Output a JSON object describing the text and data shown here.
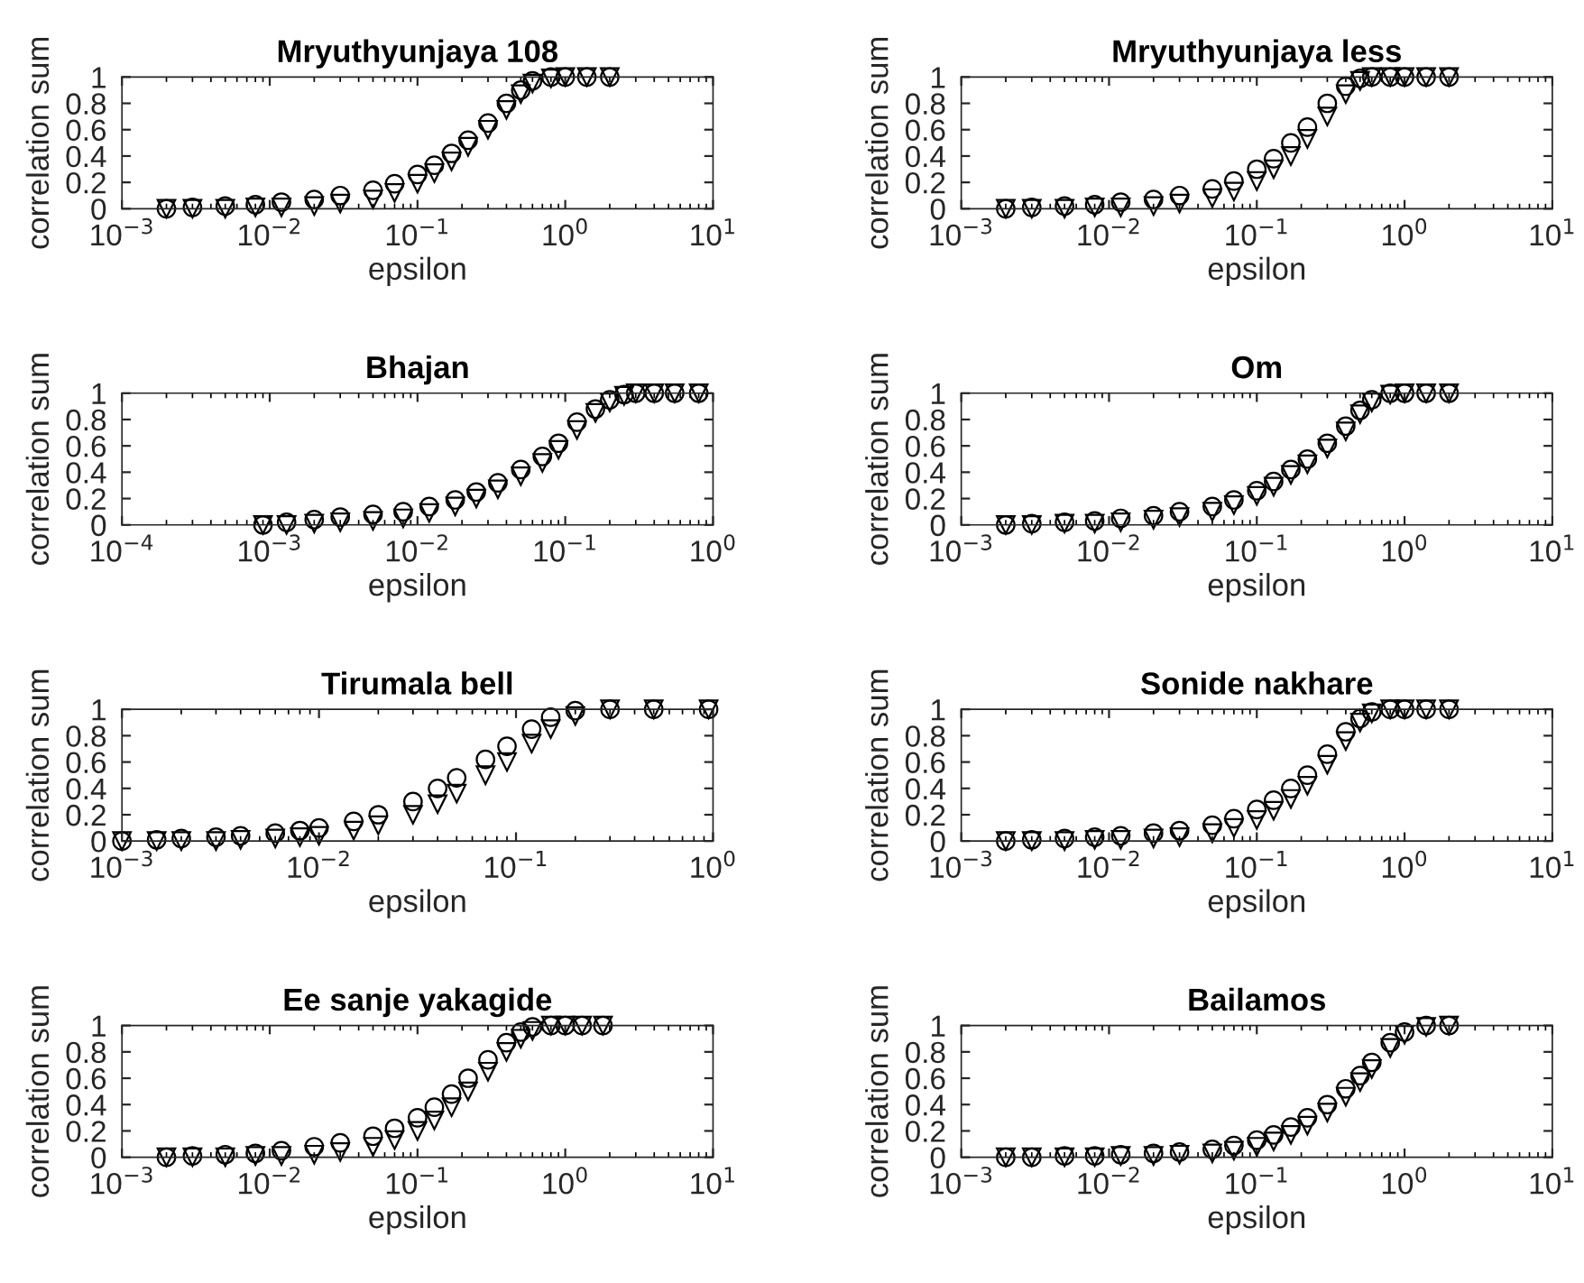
{
  "chart_data": [
    {
      "type": "scatter",
      "title": "Mryuthyunjaya 108",
      "xlabel": "epsilon",
      "ylabel": "correlation sum",
      "log": "x",
      "xlim": [
        0.001,
        10
      ],
      "xticks": [
        {
          "value": 0.001,
          "label": "10$^{−3}$"
        },
        {
          "value": 0.01,
          "label": "10$^{−2}$"
        },
        {
          "value": 0.1,
          "label": "10$^{−1}$"
        },
        {
          "value": 1,
          "label": "10$^{0}$"
        },
        {
          "value": 10,
          "label": "10$^{1}$"
        }
      ],
      "ylim": [
        0,
        1
      ],
      "yticks": [
        0,
        0.2,
        0.4,
        0.6,
        0.8,
        1
      ],
      "series": [
        {
          "color": "#000000",
          "marker": "circle",
          "x": [
            0.002,
            0.003,
            0.005,
            0.008,
            0.012,
            0.02,
            0.03,
            0.05,
            0.07,
            0.1,
            0.13,
            0.17,
            0.22,
            0.3,
            0.4,
            0.5,
            0.6,
            0.8,
            1,
            1.4,
            2
          ],
          "values": [
            0,
            0.01,
            0.02,
            0.03,
            0.05,
            0.07,
            0.1,
            0.14,
            0.19,
            0.26,
            0.33,
            0.42,
            0.52,
            0.65,
            0.8,
            0.9,
            0.97,
            1,
            1,
            1,
            1
          ]
        },
        {
          "color": "#000000",
          "marker": "triangle",
          "x": [
            0.002,
            0.003,
            0.005,
            0.008,
            0.012,
            0.02,
            0.03,
            0.05,
            0.07,
            0.1,
            0.13,
            0.17,
            0.22,
            0.3,
            0.4,
            0.5,
            0.6,
            0.8,
            1,
            1.4,
            2
          ],
          "values": [
            0,
            0,
            0,
            0.01,
            0.01,
            0.02,
            0.04,
            0.07,
            0.12,
            0.19,
            0.27,
            0.36,
            0.47,
            0.6,
            0.75,
            0.87,
            0.95,
            0.99,
            1,
            1,
            1
          ]
        }
      ]
    },
    {
      "type": "scatter",
      "title": "Mryuthyunjaya less",
      "xlabel": "epsilon",
      "ylabel": "correlation sum",
      "log": "x",
      "xlim": [
        0.001,
        10
      ],
      "xticks": [
        {
          "value": 0.001,
          "label": "10$^{−3}$"
        },
        {
          "value": 0.01,
          "label": "10$^{−2}$"
        },
        {
          "value": 0.1,
          "label": "10$^{−1}$"
        },
        {
          "value": 1,
          "label": "10$^{0}$"
        },
        {
          "value": 10,
          "label": "10$^{1}$"
        }
      ],
      "ylim": [
        0,
        1
      ],
      "yticks": [
        0,
        0.2,
        0.4,
        0.6,
        0.8,
        1
      ],
      "series": [
        {
          "color": "#000000",
          "marker": "circle",
          "x": [
            0.002,
            0.003,
            0.005,
            0.008,
            0.012,
            0.02,
            0.03,
            0.05,
            0.07,
            0.1,
            0.13,
            0.17,
            0.22,
            0.3,
            0.4,
            0.5,
            0.6,
            0.8,
            1,
            1.4,
            2
          ],
          "values": [
            0,
            0.01,
            0.02,
            0.03,
            0.05,
            0.07,
            0.1,
            0.15,
            0.21,
            0.3,
            0.38,
            0.5,
            0.62,
            0.8,
            0.93,
            0.99,
            1,
            1,
            1,
            1,
            1
          ]
        },
        {
          "color": "#000000",
          "marker": "triangle",
          "x": [
            0.002,
            0.003,
            0.005,
            0.008,
            0.012,
            0.02,
            0.03,
            0.05,
            0.07,
            0.1,
            0.13,
            0.17,
            0.22,
            0.3,
            0.4,
            0.5,
            0.6,
            0.8,
            1,
            1.4,
            2
          ],
          "values": [
            0,
            0,
            0,
            0.01,
            0.01,
            0.02,
            0.04,
            0.08,
            0.13,
            0.21,
            0.3,
            0.4,
            0.53,
            0.7,
            0.87,
            0.97,
            1,
            1,
            1,
            1,
            1
          ]
        }
      ]
    },
    {
      "type": "scatter",
      "title": "Bhajan",
      "xlabel": "epsilon",
      "ylabel": "correlation sum",
      "log": "x",
      "xlim": [
        0.0001,
        1
      ],
      "xticks": [
        {
          "value": 0.0001,
          "label": "10$^{−4}$"
        },
        {
          "value": 0.001,
          "label": "10$^{−3}$"
        },
        {
          "value": 0.01,
          "label": "10$^{−2}$"
        },
        {
          "value": 0.1,
          "label": "10$^{−1}$"
        },
        {
          "value": 1,
          "label": "10$^{0}$"
        }
      ],
      "ylim": [
        0,
        1
      ],
      "yticks": [
        0,
        0.2,
        0.4,
        0.6,
        0.8,
        1
      ],
      "series": [
        {
          "color": "#000000",
          "marker": "circle",
          "x": [
            0.0009,
            0.0013,
            0.002,
            0.003,
            0.005,
            0.008,
            0.012,
            0.018,
            0.025,
            0.035,
            0.05,
            0.07,
            0.09,
            0.12,
            0.16,
            0.2,
            0.25,
            0.3,
            0.4,
            0.55,
            0.8
          ],
          "values": [
            0,
            0.02,
            0.04,
            0.06,
            0.08,
            0.1,
            0.14,
            0.19,
            0.25,
            0.32,
            0.42,
            0.52,
            0.62,
            0.78,
            0.88,
            0.95,
            0.99,
            1,
            1,
            1,
            1
          ]
        },
        {
          "color": "#000000",
          "marker": "triangle",
          "x": [
            0.0009,
            0.0013,
            0.002,
            0.003,
            0.005,
            0.008,
            0.012,
            0.018,
            0.025,
            0.035,
            0.05,
            0.07,
            0.09,
            0.12,
            0.16,
            0.2,
            0.25,
            0.3,
            0.4,
            0.55,
            0.8
          ],
          "values": [
            0,
            0,
            0.01,
            0.02,
            0.03,
            0.05,
            0.09,
            0.14,
            0.2,
            0.27,
            0.37,
            0.47,
            0.57,
            0.72,
            0.85,
            0.93,
            0.98,
            1,
            1,
            1,
            1
          ]
        }
      ]
    },
    {
      "type": "scatter",
      "title": "Om",
      "xlabel": "epsilon",
      "ylabel": "correlation sum",
      "log": "x",
      "xlim": [
        0.001,
        10
      ],
      "xticks": [
        {
          "value": 0.001,
          "label": "10$^{−3}$"
        },
        {
          "value": 0.01,
          "label": "10$^{−2}$"
        },
        {
          "value": 0.1,
          "label": "10$^{−1}$"
        },
        {
          "value": 1,
          "label": "10$^{0}$"
        },
        {
          "value": 10,
          "label": "10$^{1}$"
        }
      ],
      "ylim": [
        0,
        1
      ],
      "yticks": [
        0,
        0.2,
        0.4,
        0.6,
        0.8,
        1
      ],
      "series": [
        {
          "color": "#000000",
          "marker": "circle",
          "x": [
            0.002,
            0.003,
            0.005,
            0.008,
            0.012,
            0.02,
            0.03,
            0.05,
            0.07,
            0.1,
            0.13,
            0.17,
            0.22,
            0.3,
            0.4,
            0.5,
            0.6,
            0.8,
            1,
            1.4,
            2
          ],
          "values": [
            0,
            0.01,
            0.02,
            0.03,
            0.05,
            0.07,
            0.1,
            0.14,
            0.19,
            0.26,
            0.33,
            0.42,
            0.5,
            0.62,
            0.75,
            0.87,
            0.95,
            1,
            1,
            1,
            1
          ]
        },
        {
          "color": "#000000",
          "marker": "triangle",
          "x": [
            0.002,
            0.003,
            0.005,
            0.008,
            0.012,
            0.02,
            0.03,
            0.05,
            0.07,
            0.1,
            0.13,
            0.17,
            0.22,
            0.3,
            0.4,
            0.5,
            0.6,
            0.8,
            1,
            1.4,
            2
          ],
          "values": [
            0,
            0,
            0.01,
            0.01,
            0.02,
            0.04,
            0.06,
            0.1,
            0.15,
            0.22,
            0.29,
            0.38,
            0.46,
            0.58,
            0.71,
            0.84,
            0.93,
            0.99,
            1,
            1,
            1
          ]
        }
      ]
    },
    {
      "type": "scatter",
      "title": "Tirumala bell",
      "xlabel": "epsilon",
      "ylabel": "correlation sum",
      "log": "x",
      "xlim": [
        0.001,
        1
      ],
      "xticks": [
        {
          "value": 0.001,
          "label": "10$^{−3}$"
        },
        {
          "value": 0.01,
          "label": "10$^{−2}$"
        },
        {
          "value": 0.1,
          "label": "10$^{−1}$"
        },
        {
          "value": 1,
          "label": "10$^{0}$"
        }
      ],
      "ylim": [
        0,
        1
      ],
      "yticks": [
        0,
        0.2,
        0.4,
        0.6,
        0.8,
        1
      ],
      "series": [
        {
          "color": "#000000",
          "marker": "circle",
          "x": [
            0.001,
            0.0015,
            0.002,
            0.003,
            0.004,
            0.006,
            0.008,
            0.01,
            0.015,
            0.02,
            0.03,
            0.04,
            0.05,
            0.07,
            0.09,
            0.12,
            0.15,
            0.2,
            0.3,
            0.5,
            0.95
          ],
          "values": [
            0,
            0.01,
            0.02,
            0.03,
            0.04,
            0.06,
            0.08,
            0.1,
            0.15,
            0.2,
            0.3,
            0.4,
            0.48,
            0.62,
            0.72,
            0.85,
            0.94,
            0.99,
            1,
            1,
            1
          ]
        },
        {
          "color": "#000000",
          "marker": "triangle",
          "x": [
            0.001,
            0.0015,
            0.002,
            0.003,
            0.004,
            0.006,
            0.008,
            0.01,
            0.015,
            0.02,
            0.03,
            0.04,
            0.05,
            0.07,
            0.09,
            0.12,
            0.15,
            0.2,
            0.3,
            0.5,
            0.95
          ],
          "values": [
            0,
            0,
            0,
            0,
            0.01,
            0.02,
            0.03,
            0.04,
            0.08,
            0.12,
            0.2,
            0.28,
            0.36,
            0.5,
            0.6,
            0.74,
            0.85,
            0.95,
            1,
            1,
            1
          ]
        }
      ]
    },
    {
      "type": "scatter",
      "title": "Sonide nakhare",
      "xlabel": "epsilon",
      "ylabel": "correlation sum",
      "log": "x",
      "xlim": [
        0.001,
        10
      ],
      "xticks": [
        {
          "value": 0.001,
          "label": "10$^{−3}$"
        },
        {
          "value": 0.01,
          "label": "10$^{−2}$"
        },
        {
          "value": 0.1,
          "label": "10$^{−1}$"
        },
        {
          "value": 1,
          "label": "10$^{0}$"
        },
        {
          "value": 10,
          "label": "10$^{1}$"
        }
      ],
      "ylim": [
        0,
        1
      ],
      "yticks": [
        0,
        0.2,
        0.4,
        0.6,
        0.8,
        1
      ],
      "series": [
        {
          "color": "#000000",
          "marker": "circle",
          "x": [
            0.002,
            0.003,
            0.005,
            0.008,
            0.012,
            0.02,
            0.03,
            0.05,
            0.07,
            0.1,
            0.13,
            0.17,
            0.22,
            0.3,
            0.4,
            0.5,
            0.6,
            0.8,
            1,
            1.4,
            2
          ],
          "values": [
            0,
            0.01,
            0.02,
            0.03,
            0.04,
            0.06,
            0.08,
            0.12,
            0.17,
            0.24,
            0.31,
            0.4,
            0.5,
            0.66,
            0.83,
            0.93,
            0.98,
            1,
            1,
            1,
            1
          ]
        },
        {
          "color": "#000000",
          "marker": "triangle",
          "x": [
            0.002,
            0.003,
            0.005,
            0.008,
            0.012,
            0.02,
            0.03,
            0.05,
            0.07,
            0.1,
            0.13,
            0.17,
            0.22,
            0.3,
            0.4,
            0.5,
            0.6,
            0.8,
            1,
            1.4,
            2
          ],
          "values": [
            0,
            0,
            0,
            0.01,
            0.01,
            0.02,
            0.03,
            0.06,
            0.1,
            0.16,
            0.23,
            0.32,
            0.42,
            0.58,
            0.76,
            0.9,
            0.97,
            1,
            1,
            1,
            1
          ]
        }
      ]
    },
    {
      "type": "scatter",
      "title": "Ee sanje yakagide",
      "xlabel": "epsilon",
      "ylabel": "correlation sum",
      "log": "x",
      "xlim": [
        0.001,
        10
      ],
      "xticks": [
        {
          "value": 0.001,
          "label": "10$^{−3}$"
        },
        {
          "value": 0.01,
          "label": "10$^{−2}$"
        },
        {
          "value": 0.1,
          "label": "10$^{−1}$"
        },
        {
          "value": 1,
          "label": "10$^{0}$"
        },
        {
          "value": 10,
          "label": "10$^{1}$"
        }
      ],
      "ylim": [
        0,
        1
      ],
      "yticks": [
        0,
        0.2,
        0.4,
        0.6,
        0.8,
        1
      ],
      "series": [
        {
          "color": "#000000",
          "marker": "circle",
          "x": [
            0.002,
            0.003,
            0.005,
            0.008,
            0.012,
            0.02,
            0.03,
            0.05,
            0.07,
            0.1,
            0.13,
            0.17,
            0.22,
            0.3,
            0.4,
            0.5,
            0.6,
            0.8,
            1,
            1.3,
            1.8
          ],
          "values": [
            0,
            0.01,
            0.02,
            0.03,
            0.05,
            0.08,
            0.11,
            0.16,
            0.22,
            0.3,
            0.38,
            0.48,
            0.6,
            0.74,
            0.87,
            0.95,
            0.99,
            1,
            1,
            1,
            1
          ]
        },
        {
          "color": "#000000",
          "marker": "triangle",
          "x": [
            0.002,
            0.003,
            0.005,
            0.008,
            0.012,
            0.02,
            0.03,
            0.05,
            0.07,
            0.1,
            0.13,
            0.17,
            0.22,
            0.3,
            0.4,
            0.5,
            0.6,
            0.8,
            1,
            1.3,
            1.8
          ],
          "values": [
            0,
            0,
            0,
            0.01,
            0.01,
            0.02,
            0.04,
            0.08,
            0.13,
            0.2,
            0.28,
            0.38,
            0.5,
            0.65,
            0.8,
            0.9,
            0.96,
            1,
            1,
            1,
            1
          ]
        }
      ]
    },
    {
      "type": "scatter",
      "title": "Bailamos",
      "xlabel": "epsilon",
      "ylabel": "correlation sum",
      "log": "x",
      "xlim": [
        0.001,
        10
      ],
      "xticks": [
        {
          "value": 0.001,
          "label": "10$^{−3}$"
        },
        {
          "value": 0.01,
          "label": "10$^{−2}$"
        },
        {
          "value": 0.1,
          "label": "10$^{−1}$"
        },
        {
          "value": 1,
          "label": "10$^{0}$"
        },
        {
          "value": 10,
          "label": "10$^{1}$"
        }
      ],
      "ylim": [
        0,
        1
      ],
      "yticks": [
        0,
        0.2,
        0.4,
        0.6,
        0.8,
        1
      ],
      "series": [
        {
          "color": "#000000",
          "marker": "circle",
          "x": [
            0.002,
            0.003,
            0.005,
            0.008,
            0.012,
            0.02,
            0.03,
            0.05,
            0.07,
            0.1,
            0.13,
            0.17,
            0.22,
            0.3,
            0.4,
            0.5,
            0.6,
            0.8,
            1,
            1.4,
            2
          ],
          "values": [
            0,
            0,
            0.01,
            0.01,
            0.02,
            0.03,
            0.04,
            0.06,
            0.09,
            0.13,
            0.17,
            0.23,
            0.3,
            0.4,
            0.52,
            0.62,
            0.72,
            0.87,
            0.95,
            1,
            1
          ]
        },
        {
          "color": "#000000",
          "marker": "triangle",
          "x": [
            0.002,
            0.003,
            0.005,
            0.008,
            0.012,
            0.02,
            0.03,
            0.05,
            0.07,
            0.1,
            0.13,
            0.17,
            0.22,
            0.3,
            0.4,
            0.5,
            0.6,
            0.8,
            1,
            1.4,
            2
          ],
          "values": [
            0,
            0,
            0,
            0,
            0.01,
            0.01,
            0.02,
            0.03,
            0.05,
            0.08,
            0.12,
            0.17,
            0.24,
            0.34,
            0.46,
            0.57,
            0.67,
            0.83,
            0.93,
            0.99,
            1
          ]
        }
      ]
    }
  ]
}
